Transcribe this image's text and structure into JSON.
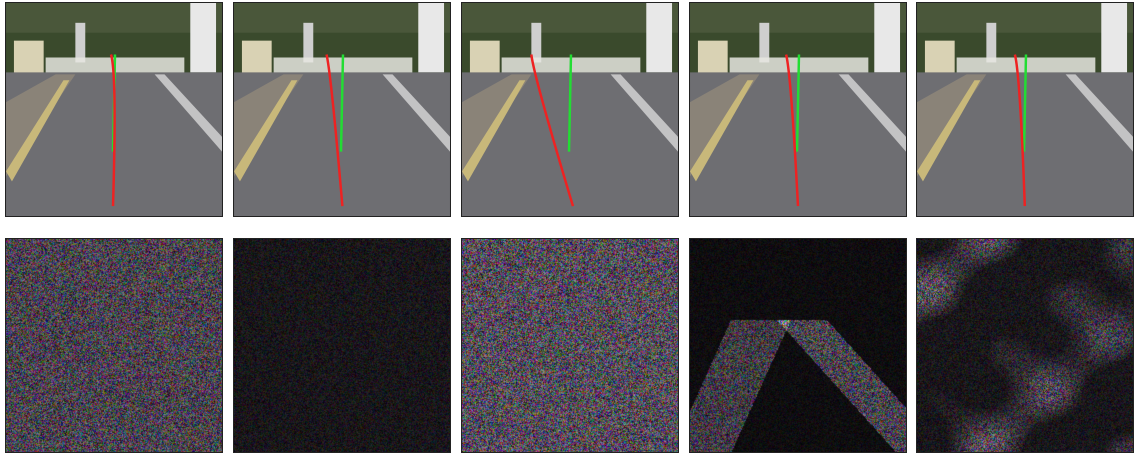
{
  "figure": {
    "columns": 5,
    "rows": [
      {
        "kind": "road-with-steering-trajectories",
        "trajectory_colors": {
          "ground_truth": "#22dd33",
          "predicted": "#ee2222"
        },
        "panels": [
          {
            "predicted_curve": 0.0
          },
          {
            "predicted_curve": 0.35
          },
          {
            "predicted_curve": 1.0
          },
          {
            "predicted_curve": 0.25
          },
          {
            "predicted_curve": 0.2
          }
        ]
      },
      {
        "kind": "noise-perturbation-map",
        "panels": [
          {
            "intensity": 0.75,
            "structure": "uniform"
          },
          {
            "intensity": 0.25,
            "structure": "uniform"
          },
          {
            "intensity": 0.85,
            "structure": "uniform"
          },
          {
            "intensity": 0.45,
            "structure": "road-edges"
          },
          {
            "intensity": 0.7,
            "structure": "blobs"
          }
        ]
      }
    ],
    "colors": {
      "sky_trees": "#3a4a2c",
      "road": "#6e6e72",
      "lane_line": "#d8d8d8",
      "curb": "#c8b87a",
      "building": "#d9d2b4"
    }
  }
}
